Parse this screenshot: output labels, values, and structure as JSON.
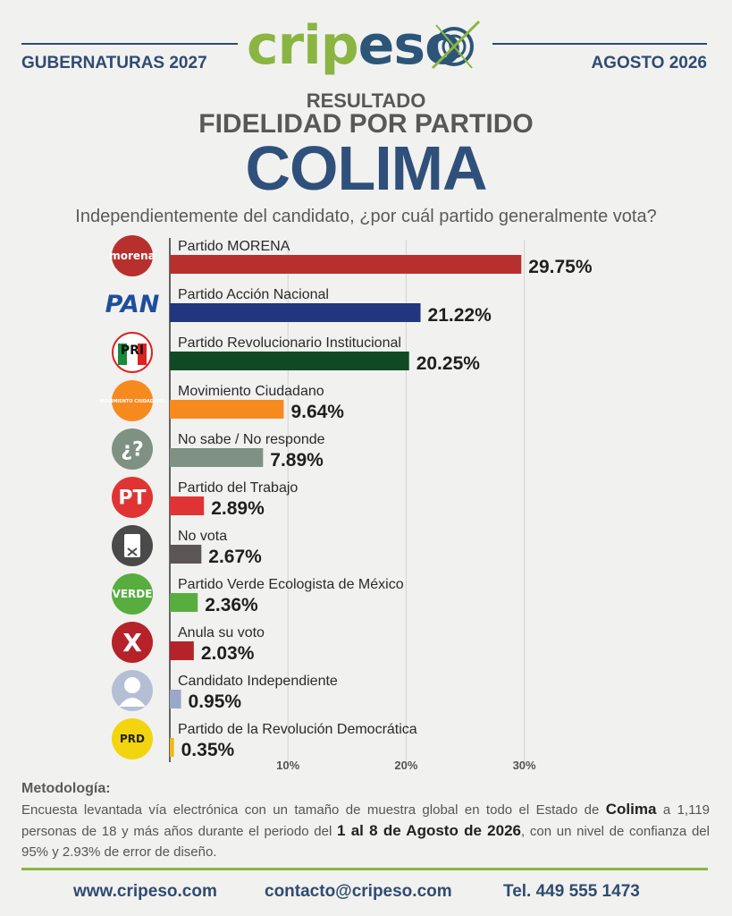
{
  "brand": {
    "name_green": "crip",
    "name_blue": "eso"
  },
  "header": {
    "left": "GUBERNATURAS 2027",
    "right": "AGOSTO 2026"
  },
  "title": {
    "line1": "RESULTADO",
    "line2": "FIDELIDAD POR PARTIDO",
    "state": "COLIMA"
  },
  "question": "Independientemente del candidato, ¿por cuál partido generalmente vota?",
  "chart_data": {
    "type": "bar",
    "orientation": "horizontal",
    "categories": [
      "Partido MORENA",
      "Partido Acción Nacional",
      "Partido Revolucionario Institucional",
      "Movimiento Ciudadano",
      "No sabe / No responde",
      "Partido del Trabajo",
      "No vota",
      "Partido Verde Ecologista de México",
      "Anula su voto",
      "Candidato Independiente",
      "Partido de la Revolución Democrática"
    ],
    "values": [
      29.75,
      21.22,
      20.25,
      9.64,
      7.89,
      2.89,
      2.67,
      2.36,
      2.03,
      0.95,
      0.35
    ],
    "value_labels": [
      "29.75%",
      "21.22%",
      "20.25%",
      "9.64%",
      "7.89%",
      "2.89%",
      "2.67%",
      "2.36%",
      "2.03%",
      "0.95%",
      "0.35%"
    ],
    "colors": [
      "#b8302d",
      "#22357f",
      "#0f4a24",
      "#f78a1f",
      "#7f9182",
      "#e03434",
      "#5c5556",
      "#57ae3e",
      "#b6222a",
      "#9aa7c8",
      "#f2b714"
    ],
    "icons": [
      "morena-logo",
      "pan-logo",
      "pri-logo",
      "movimiento-ciudadano-logo",
      "question-icon",
      "pt-logo",
      "ballot-icon",
      "verde-logo",
      "x-icon",
      "person-icon",
      "prd-logo"
    ],
    "icon_labels": [
      "morena",
      "PAN",
      "PRI",
      "MOVIMIENTO CIUDADANO",
      "¿?",
      "PT",
      "",
      "VERDE",
      "X",
      "",
      "PRD"
    ],
    "xticks": [
      10,
      20,
      30
    ],
    "xtick_labels": [
      "10%",
      "20%",
      "30%"
    ],
    "xlim": [
      0,
      32
    ],
    "grid": true
  },
  "methodology": {
    "title": "Metodología:",
    "p1": "Encuesta levantada vía electrónica con un tamaño de muestra global en todo el Estado de",
    "state": "Colima",
    "p2": " a 1,119 personas de 18 y más años durante el periodo del ",
    "period": "1 al 8 de Agosto de 2026",
    "p3": ", con un nivel de confianza del 95% y 2.93% de error de diseño."
  },
  "footer": {
    "web": "www.cripeso.com",
    "email": "contacto@cripeso.com",
    "phone": "Tel. 449 555 1473"
  }
}
